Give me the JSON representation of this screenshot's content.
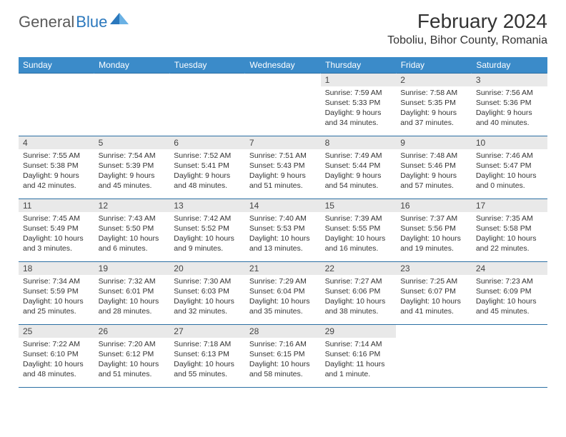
{
  "brand": {
    "general": "General",
    "blue": "Blue"
  },
  "title": "February 2024",
  "location": "Toboliu, Bihor County, Romania",
  "weekdays": [
    "Sunday",
    "Monday",
    "Tuesday",
    "Wednesday",
    "Thursday",
    "Friday",
    "Saturday"
  ],
  "styling": {
    "header_bg": "#3b8bc9",
    "header_text": "#ffffff",
    "row_border": "#2b6fa3",
    "daynum_bg": "#e9e9e9",
    "body_text": "#333333",
    "brand_gray": "#5a5a5a",
    "brand_blue": "#2b78bd",
    "page_bg": "#ffffff",
    "month_fontsize": 28,
    "location_fontsize": 16,
    "cell_fontsize": 10.5
  },
  "weeks": [
    [
      null,
      null,
      null,
      null,
      {
        "n": "1",
        "sr": "Sunrise: 7:59 AM",
        "ss": "Sunset: 5:33 PM",
        "d1": "Daylight: 9 hours",
        "d2": "and 34 minutes."
      },
      {
        "n": "2",
        "sr": "Sunrise: 7:58 AM",
        "ss": "Sunset: 5:35 PM",
        "d1": "Daylight: 9 hours",
        "d2": "and 37 minutes."
      },
      {
        "n": "3",
        "sr": "Sunrise: 7:56 AM",
        "ss": "Sunset: 5:36 PM",
        "d1": "Daylight: 9 hours",
        "d2": "and 40 minutes."
      }
    ],
    [
      {
        "n": "4",
        "sr": "Sunrise: 7:55 AM",
        "ss": "Sunset: 5:38 PM",
        "d1": "Daylight: 9 hours",
        "d2": "and 42 minutes."
      },
      {
        "n": "5",
        "sr": "Sunrise: 7:54 AM",
        "ss": "Sunset: 5:39 PM",
        "d1": "Daylight: 9 hours",
        "d2": "and 45 minutes."
      },
      {
        "n": "6",
        "sr": "Sunrise: 7:52 AM",
        "ss": "Sunset: 5:41 PM",
        "d1": "Daylight: 9 hours",
        "d2": "and 48 minutes."
      },
      {
        "n": "7",
        "sr": "Sunrise: 7:51 AM",
        "ss": "Sunset: 5:43 PM",
        "d1": "Daylight: 9 hours",
        "d2": "and 51 minutes."
      },
      {
        "n": "8",
        "sr": "Sunrise: 7:49 AM",
        "ss": "Sunset: 5:44 PM",
        "d1": "Daylight: 9 hours",
        "d2": "and 54 minutes."
      },
      {
        "n": "9",
        "sr": "Sunrise: 7:48 AM",
        "ss": "Sunset: 5:46 PM",
        "d1": "Daylight: 9 hours",
        "d2": "and 57 minutes."
      },
      {
        "n": "10",
        "sr": "Sunrise: 7:46 AM",
        "ss": "Sunset: 5:47 PM",
        "d1": "Daylight: 10 hours",
        "d2": "and 0 minutes."
      }
    ],
    [
      {
        "n": "11",
        "sr": "Sunrise: 7:45 AM",
        "ss": "Sunset: 5:49 PM",
        "d1": "Daylight: 10 hours",
        "d2": "and 3 minutes."
      },
      {
        "n": "12",
        "sr": "Sunrise: 7:43 AM",
        "ss": "Sunset: 5:50 PM",
        "d1": "Daylight: 10 hours",
        "d2": "and 6 minutes."
      },
      {
        "n": "13",
        "sr": "Sunrise: 7:42 AM",
        "ss": "Sunset: 5:52 PM",
        "d1": "Daylight: 10 hours",
        "d2": "and 9 minutes."
      },
      {
        "n": "14",
        "sr": "Sunrise: 7:40 AM",
        "ss": "Sunset: 5:53 PM",
        "d1": "Daylight: 10 hours",
        "d2": "and 13 minutes."
      },
      {
        "n": "15",
        "sr": "Sunrise: 7:39 AM",
        "ss": "Sunset: 5:55 PM",
        "d1": "Daylight: 10 hours",
        "d2": "and 16 minutes."
      },
      {
        "n": "16",
        "sr": "Sunrise: 7:37 AM",
        "ss": "Sunset: 5:56 PM",
        "d1": "Daylight: 10 hours",
        "d2": "and 19 minutes."
      },
      {
        "n": "17",
        "sr": "Sunrise: 7:35 AM",
        "ss": "Sunset: 5:58 PM",
        "d1": "Daylight: 10 hours",
        "d2": "and 22 minutes."
      }
    ],
    [
      {
        "n": "18",
        "sr": "Sunrise: 7:34 AM",
        "ss": "Sunset: 5:59 PM",
        "d1": "Daylight: 10 hours",
        "d2": "and 25 minutes."
      },
      {
        "n": "19",
        "sr": "Sunrise: 7:32 AM",
        "ss": "Sunset: 6:01 PM",
        "d1": "Daylight: 10 hours",
        "d2": "and 28 minutes."
      },
      {
        "n": "20",
        "sr": "Sunrise: 7:30 AM",
        "ss": "Sunset: 6:03 PM",
        "d1": "Daylight: 10 hours",
        "d2": "and 32 minutes."
      },
      {
        "n": "21",
        "sr": "Sunrise: 7:29 AM",
        "ss": "Sunset: 6:04 PM",
        "d1": "Daylight: 10 hours",
        "d2": "and 35 minutes."
      },
      {
        "n": "22",
        "sr": "Sunrise: 7:27 AM",
        "ss": "Sunset: 6:06 PM",
        "d1": "Daylight: 10 hours",
        "d2": "and 38 minutes."
      },
      {
        "n": "23",
        "sr": "Sunrise: 7:25 AM",
        "ss": "Sunset: 6:07 PM",
        "d1": "Daylight: 10 hours",
        "d2": "and 41 minutes."
      },
      {
        "n": "24",
        "sr": "Sunrise: 7:23 AM",
        "ss": "Sunset: 6:09 PM",
        "d1": "Daylight: 10 hours",
        "d2": "and 45 minutes."
      }
    ],
    [
      {
        "n": "25",
        "sr": "Sunrise: 7:22 AM",
        "ss": "Sunset: 6:10 PM",
        "d1": "Daylight: 10 hours",
        "d2": "and 48 minutes."
      },
      {
        "n": "26",
        "sr": "Sunrise: 7:20 AM",
        "ss": "Sunset: 6:12 PM",
        "d1": "Daylight: 10 hours",
        "d2": "and 51 minutes."
      },
      {
        "n": "27",
        "sr": "Sunrise: 7:18 AM",
        "ss": "Sunset: 6:13 PM",
        "d1": "Daylight: 10 hours",
        "d2": "and 55 minutes."
      },
      {
        "n": "28",
        "sr": "Sunrise: 7:16 AM",
        "ss": "Sunset: 6:15 PM",
        "d1": "Daylight: 10 hours",
        "d2": "and 58 minutes."
      },
      {
        "n": "29",
        "sr": "Sunrise: 7:14 AM",
        "ss": "Sunset: 6:16 PM",
        "d1": "Daylight: 11 hours",
        "d2": "and 1 minute."
      },
      null,
      null
    ]
  ]
}
